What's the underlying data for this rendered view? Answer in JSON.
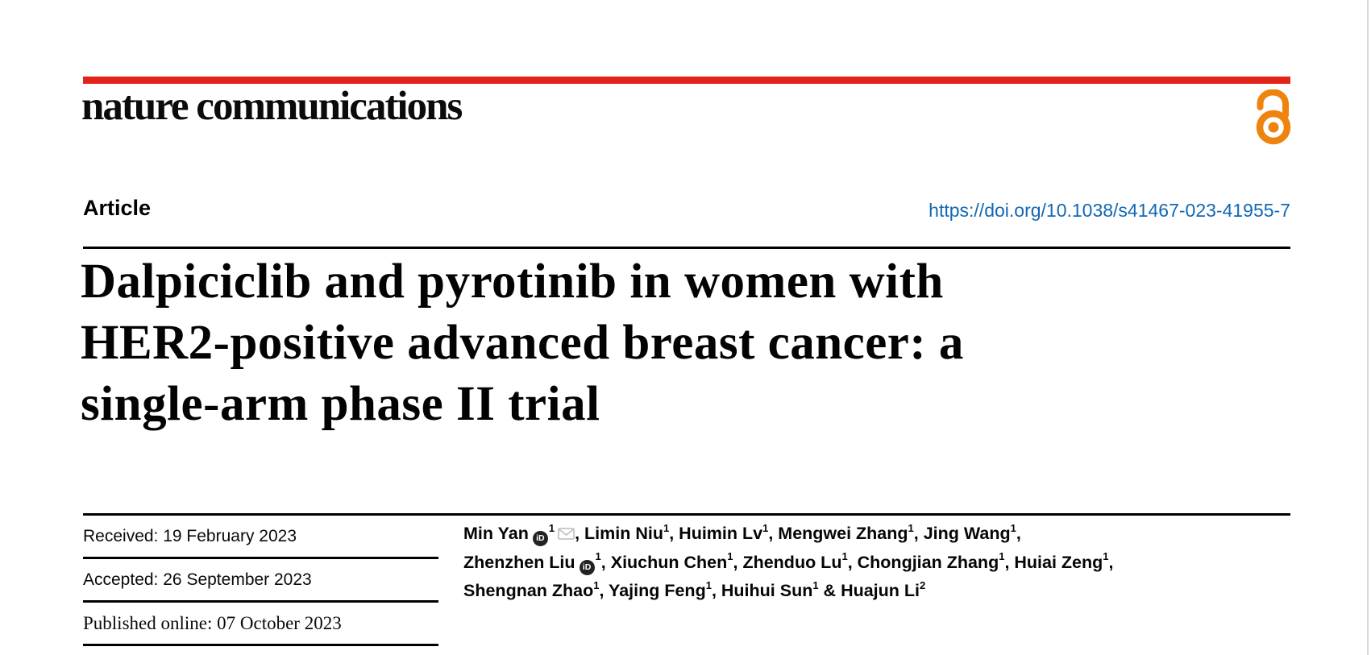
{
  "colors": {
    "brand_red": "#e2231a",
    "oa_orange": "#ee840e",
    "link_blue": "#1268b3",
    "page_edge_gray": "#d9d9d9",
    "orcid_dark": "#222222",
    "mail_gray": "#c4c4c4"
  },
  "masthead": {
    "journal_name": "nature communications"
  },
  "article_header": {
    "type_label": "Article",
    "doi_link": "https://doi.org/10.1038/s41467-023-41955-7"
  },
  "title": {
    "lines": [
      "Dalpiciclib and pyrotinib in women with",
      "HER2-positive advanced breast cancer: a",
      "single-arm phase II trial"
    ]
  },
  "history": {
    "received": {
      "label": "Received:",
      "date": "19 February 2023"
    },
    "accepted": {
      "label": "Accepted:",
      "date": "26 September 2023"
    },
    "published": {
      "label": "Published online:",
      "date": "07 October 2023"
    }
  },
  "authors": {
    "orcid_icon_label": "iD",
    "lines": [
      [
        {
          "name": "Min Yan",
          "orcid": true,
          "sup": "1",
          "mail": true,
          "trail": ", "
        },
        {
          "name": "Limin Niu",
          "sup": "1",
          "trail": ", "
        },
        {
          "name": "Huimin Lv",
          "sup": "1",
          "trail": ", "
        },
        {
          "name": "Mengwei Zhang",
          "sup": "1",
          "trail": ", "
        },
        {
          "name": "Jing Wang",
          "sup": "1",
          "trail": ","
        }
      ],
      [
        {
          "name": "Zhenzhen Liu",
          "orcid": true,
          "sup": "1",
          "trail": ", "
        },
        {
          "name": "Xiuchun Chen",
          "sup": "1",
          "trail": ", "
        },
        {
          "name": "Zhenduo Lu",
          "sup": "1",
          "trail": ", "
        },
        {
          "name": "Chongjian Zhang",
          "sup": "1",
          "trail": ", "
        },
        {
          "name": "Huiai Zeng",
          "sup": "1",
          "trail": ","
        }
      ],
      [
        {
          "name": "Shengnan Zhao",
          "sup": "1",
          "trail": ", "
        },
        {
          "name": "Yajing Feng",
          "sup": "1",
          "trail": ", "
        },
        {
          "name": "Huihui Sun",
          "sup": "1",
          "trail": " & "
        },
        {
          "name": "Huajun Li",
          "sup": "2",
          "trail": ""
        }
      ]
    ]
  }
}
